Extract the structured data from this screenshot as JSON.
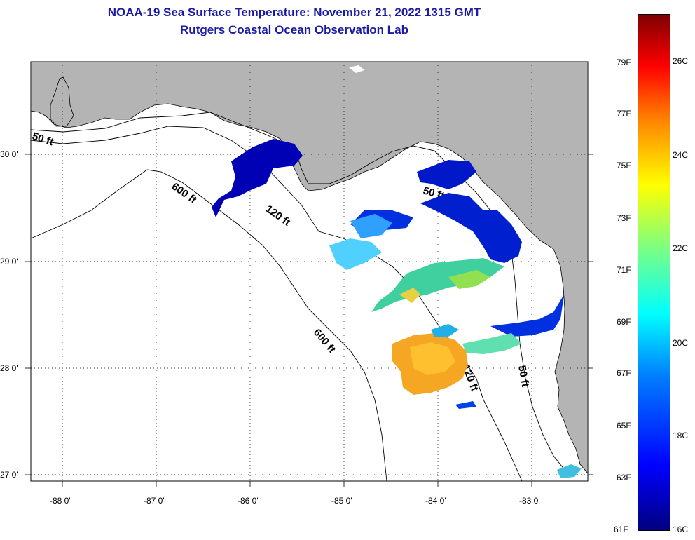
{
  "title": {
    "line1": "NOAA-19 Sea Surface Temperature:  November 21, 2022 1315 GMT",
    "line2": "Rutgers Coastal Ocean Observation Lab"
  },
  "axes": {
    "lon_labels": [
      "-88 0'",
      "-87 0'",
      "-86 0'",
      "-85 0'",
      "-84 0'",
      "-83 0'"
    ],
    "lat_labels": [
      "30 0'",
      "29 0'",
      "28 0'",
      "27 0'"
    ]
  },
  "isobaths": {
    "shallow": "50 ft",
    "mid": "120 ft",
    "deep": "600 ft"
  },
  "colorbar": {
    "fahrenheit": [
      "79F",
      "77F",
      "75F",
      "73F",
      "71F",
      "69F",
      "67F",
      "65F",
      "63F",
      "61F"
    ],
    "celsius": [
      "26C",
      "24C",
      "22C",
      "20C",
      "18C",
      "16C"
    ]
  },
  "colors": {
    "title": "#1a1aa6",
    "land": "#b4b4b4",
    "water": "#ffffff",
    "cold": "#0000b4",
    "warm": "#ffa500"
  }
}
